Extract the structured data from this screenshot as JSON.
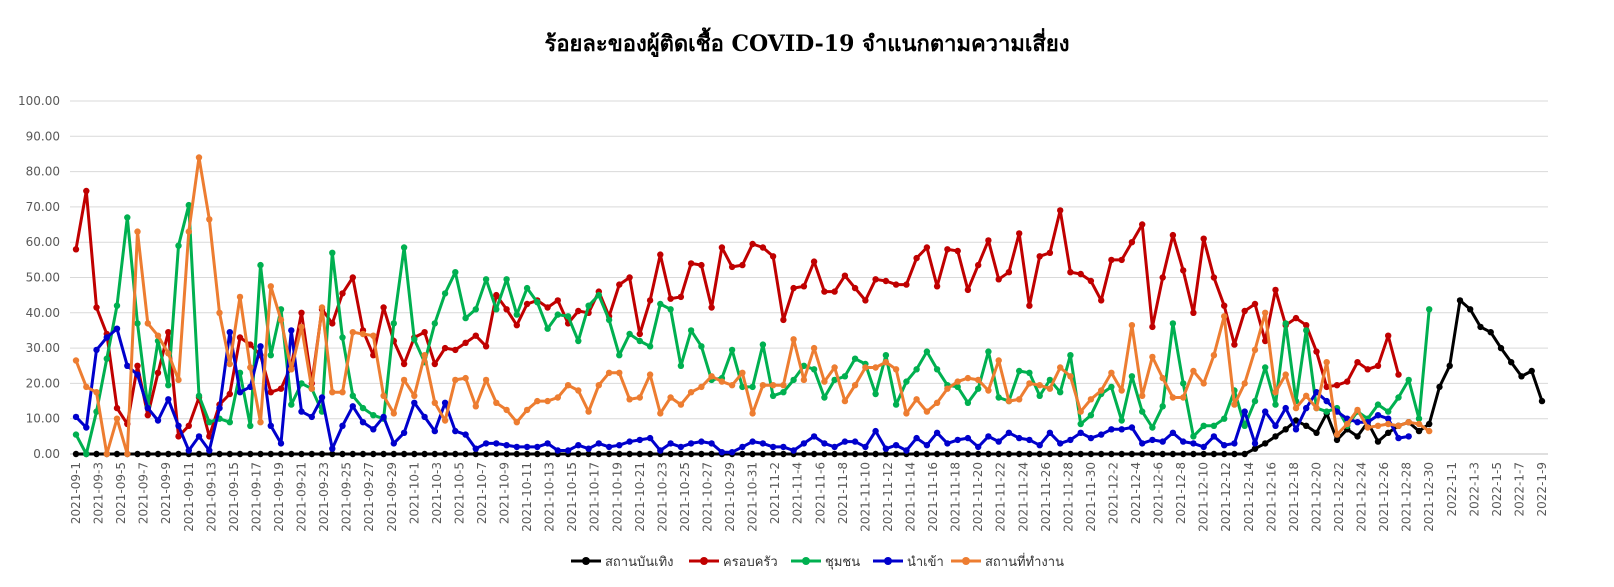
{
  "chart_data": {
    "type": "line",
    "title": "ร้อยละของผู้ติดเชื้อ COVID-19 จำแนกตามความเสี่ยง",
    "xlabel": "",
    "ylabel": "",
    "ylim": [
      0,
      100
    ],
    "y_ticks": [
      "0.00",
      "10.00",
      "20.00",
      "30.00",
      "40.00",
      "50.00",
      "60.00",
      "70.00",
      "80.00",
      "90.00",
      "100.00"
    ],
    "grid": true,
    "legend_position": "bottom",
    "x_tick_labels": [
      "2021-09-1",
      "2021-09-3",
      "2021-09-5",
      "2021-09-7",
      "2021-09-9",
      "2021-09-11",
      "2021-09-13",
      "2021-09-15",
      "2021-09-17",
      "2021-09-19",
      "2021-09-21",
      "2021-09-23",
      "2021-09-25",
      "2021-09-27",
      "2021-09-29",
      "2021-10-1",
      "2021-10-3",
      "2021-10-5",
      "2021-10-7",
      "2021-10-9",
      "2021-10-11",
      "2021-10-13",
      "2021-10-15",
      "2021-10-17",
      "2021-10-19",
      "2021-10-21",
      "2021-10-23",
      "2021-10-25",
      "2021-10-27",
      "2021-10-29",
      "2021-10-31",
      "2021-11-2",
      "2021-11-4",
      "2021-11-6",
      "2021-11-8",
      "2021-11-10",
      "2021-11-12",
      "2021-11-14",
      "2021-11-16",
      "2021-11-18",
      "2021-11-20",
      "2021-11-22",
      "2021-11-24",
      "2021-11-26",
      "2021-11-28",
      "2021-11-30",
      "2021-12-2",
      "2021-12-4",
      "2021-12-6",
      "2021-12-8",
      "2021-12-10",
      "2021-12-12",
      "2021-12-14",
      "2021-12-16",
      "2021-12-18",
      "2021-12-20",
      "2021-12-22",
      "2021-12-24",
      "2021-12-26",
      "2021-12-28",
      "2021-12-30",
      "2022-1-1",
      "2022-1-3",
      "2022-1-5",
      "2022-1-7",
      "2022-1-9"
    ],
    "series": [
      {
        "name": "สถานบันเทิง",
        "color": "#000000",
        "values": [
          0,
          0,
          0,
          0,
          0,
          0,
          0,
          0,
          0,
          0,
          0,
          0,
          0,
          0,
          0,
          0,
          0,
          0,
          0,
          0,
          0,
          0,
          0,
          0,
          0,
          0,
          0,
          0,
          0,
          0,
          0,
          0,
          0,
          0,
          0,
          0,
          0,
          0,
          0,
          0,
          0,
          0,
          0,
          0,
          0,
          0,
          0,
          0,
          0,
          0,
          0,
          0,
          0,
          0,
          0,
          0,
          0,
          0,
          0,
          0,
          0,
          0,
          0,
          0,
          0,
          0,
          0,
          0,
          0,
          0,
          0,
          0,
          0,
          0,
          0,
          0,
          0,
          0,
          0,
          0,
          0,
          0,
          0,
          0,
          0,
          0,
          0,
          0,
          0,
          0,
          0,
          0,
          0,
          0,
          0,
          0,
          0,
          0,
          0,
          0,
          0,
          0,
          0,
          0,
          0,
          0,
          0,
          0,
          0,
          0,
          0,
          0,
          0,
          0,
          0,
          1.5,
          3,
          5,
          7,
          9.5,
          8,
          6,
          11.5,
          4,
          7,
          5,
          9,
          3.5,
          6,
          8,
          9,
          6.5,
          8.5,
          19,
          25,
          43.5,
          41,
          36,
          34.5,
          30,
          26,
          22,
          23.5,
          15
        ]
      },
      {
        "name": "ครอบครัว",
        "color": "#C00000",
        "values": [
          58,
          74.5,
          41.5,
          34,
          13,
          8.5,
          25,
          11,
          23,
          34.5,
          5,
          8,
          16,
          5,
          14,
          17,
          33,
          31,
          28,
          17.5,
          18.5,
          25,
          40,
          20,
          41,
          37,
          45.5,
          50,
          35,
          28,
          41.5,
          32,
          25.5,
          33,
          34.5,
          25.5,
          30,
          29.5,
          31.5,
          33.5,
          30.5,
          45,
          41,
          36.5,
          42.5,
          43.5,
          41.5,
          43.5,
          37,
          40.5,
          40,
          46,
          39,
          48,
          50,
          34,
          43.5,
          56.5,
          44,
          44.5,
          54,
          53.5,
          41.5,
          58.5,
          53,
          53.5,
          59.5,
          58.5,
          56,
          38,
          47,
          47.5,
          54.5,
          46,
          46,
          50.5,
          47,
          43.5,
          49.5,
          49,
          48,
          48,
          55.5,
          58.5,
          47.5,
          58,
          57.5,
          46.5,
          53.5,
          60.5,
          49.5,
          51.5,
          62.5,
          42,
          56,
          57,
          69,
          51.5,
          51,
          49,
          43.5,
          55,
          55,
          60,
          65,
          36,
          50,
          62,
          52,
          40,
          61,
          50,
          42,
          31,
          40.5,
          42.5,
          32,
          46.5,
          36.5,
          38.5,
          36.5,
          29,
          19,
          19.5,
          20.5,
          26,
          24,
          25,
          33.5,
          22.5
        ]
      },
      {
        "name": "ชุมชน",
        "color": "#00B050",
        "values": [
          5.5,
          0,
          12,
          27,
          42,
          67,
          37,
          13.5,
          32,
          19.5,
          59,
          70.5,
          16.5,
          9,
          10,
          9,
          23,
          8,
          53.5,
          28,
          41,
          14,
          20,
          18.5,
          12,
          57,
          33,
          16.5,
          13,
          11,
          10,
          37,
          58.5,
          32.5,
          26,
          37,
          45.5,
          51.5,
          38.5,
          41,
          49.5,
          41,
          49.5,
          39.5,
          47,
          43,
          35.5,
          39.5,
          39,
          32,
          42,
          45,
          38,
          28,
          34,
          32,
          30.5,
          42.5,
          41,
          25,
          35,
          30.5,
          21,
          21.5,
          29.5,
          19,
          19,
          31,
          16.5,
          17.5,
          21,
          25,
          24,
          16,
          21,
          22,
          27,
          25.5,
          17,
          28,
          14,
          20.5,
          24,
          29,
          24,
          19.5,
          19,
          14.5,
          18.5,
          29,
          16,
          15,
          23.5,
          23,
          16.5,
          21,
          17.5,
          28,
          8.5,
          11,
          17,
          19,
          9.5,
          22,
          12,
          7.5,
          13.5,
          37,
          20,
          5,
          8,
          8,
          10,
          18,
          8,
          15,
          24.5,
          14,
          37,
          15,
          35,
          13,
          12,
          13,
          8,
          12,
          10,
          14,
          12,
          16,
          21,
          10,
          41
        ]
      },
      {
        "name": "นำเข้า",
        "color": "#0000CC",
        "values": [
          10.5,
          7.5,
          29.5,
          33,
          35.5,
          25,
          22.5,
          13,
          9.5,
          15.5,
          8,
          1,
          5,
          1,
          13,
          34.5,
          17.5,
          19,
          30.5,
          8,
          3,
          35,
          12,
          10.5,
          16,
          1.5,
          8,
          13.5,
          9,
          7,
          10.5,
          3,
          6,
          14.5,
          10.5,
          6.5,
          14.5,
          6.5,
          5.5,
          1.5,
          3,
          3,
          2.5,
          2,
          2,
          2,
          3,
          1,
          1,
          2.5,
          1.5,
          3,
          2,
          2.5,
          3.5,
          4,
          4.5,
          1,
          3,
          2,
          3,
          3.5,
          3,
          0.5,
          0.5,
          2,
          3.5,
          3,
          2,
          2,
          1,
          3,
          5,
          3,
          2,
          3.5,
          3.5,
          2,
          6.5,
          1.5,
          2.5,
          1,
          4.5,
          2.5,
          6,
          3,
          4,
          4.5,
          2,
          5,
          3.5,
          6,
          4.5,
          4,
          2.5,
          6,
          3,
          4,
          6,
          4.5,
          5.5,
          7,
          7,
          7.5,
          3,
          4,
          3.5,
          6,
          3.5,
          3,
          2,
          5,
          2.5,
          3,
          12,
          3,
          12,
          8,
          13,
          7,
          13,
          17.5,
          15,
          12,
          10,
          9,
          9,
          11,
          10,
          4.5,
          5
        ]
      },
      {
        "name": "สถานที่ทำงาน",
        "color": "#ED7D31",
        "values": [
          26.5,
          19,
          17.5,
          0,
          10,
          0,
          63,
          37,
          33.5,
          28.5,
          21,
          63,
          84,
          66.5,
          40,
          25.5,
          44.5,
          24.5,
          9,
          47.5,
          38,
          24,
          36,
          18.5,
          41.5,
          17.5,
          17.5,
          34.5,
          34,
          33.5,
          16.5,
          11.5,
          21,
          16.5,
          28,
          14.5,
          9.5,
          21,
          21.5,
          13.5,
          21,
          14.5,
          12.5,
          9,
          12.5,
          15,
          15,
          16,
          19.5,
          18,
          12,
          19.5,
          23,
          23,
          15.5,
          16,
          22.5,
          11.5,
          16,
          14,
          17.5,
          19,
          22,
          20.5,
          19.5,
          23,
          11.5,
          19.5,
          19.5,
          19.5,
          32.5,
          21,
          30,
          20.5,
          24.5,
          15,
          19.5,
          24.5,
          24.5,
          26,
          24,
          11.5,
          15.5,
          12,
          14.5,
          18.5,
          20.5,
          21.5,
          21,
          18,
          26.5,
          15,
          15.5,
          20,
          19.5,
          18.5,
          24.5,
          22,
          12,
          15.5,
          18,
          23,
          18,
          36.5,
          16.5,
          27.5,
          21.5,
          16,
          16,
          23.5,
          20,
          28,
          39,
          14,
          20,
          29.5,
          40,
          17.5,
          22.5,
          13,
          16.5,
          13,
          26,
          5.5,
          8.5,
          12.5,
          7.5,
          8,
          8.5,
          8,
          9,
          8.5,
          6.5
        ]
      }
    ]
  }
}
